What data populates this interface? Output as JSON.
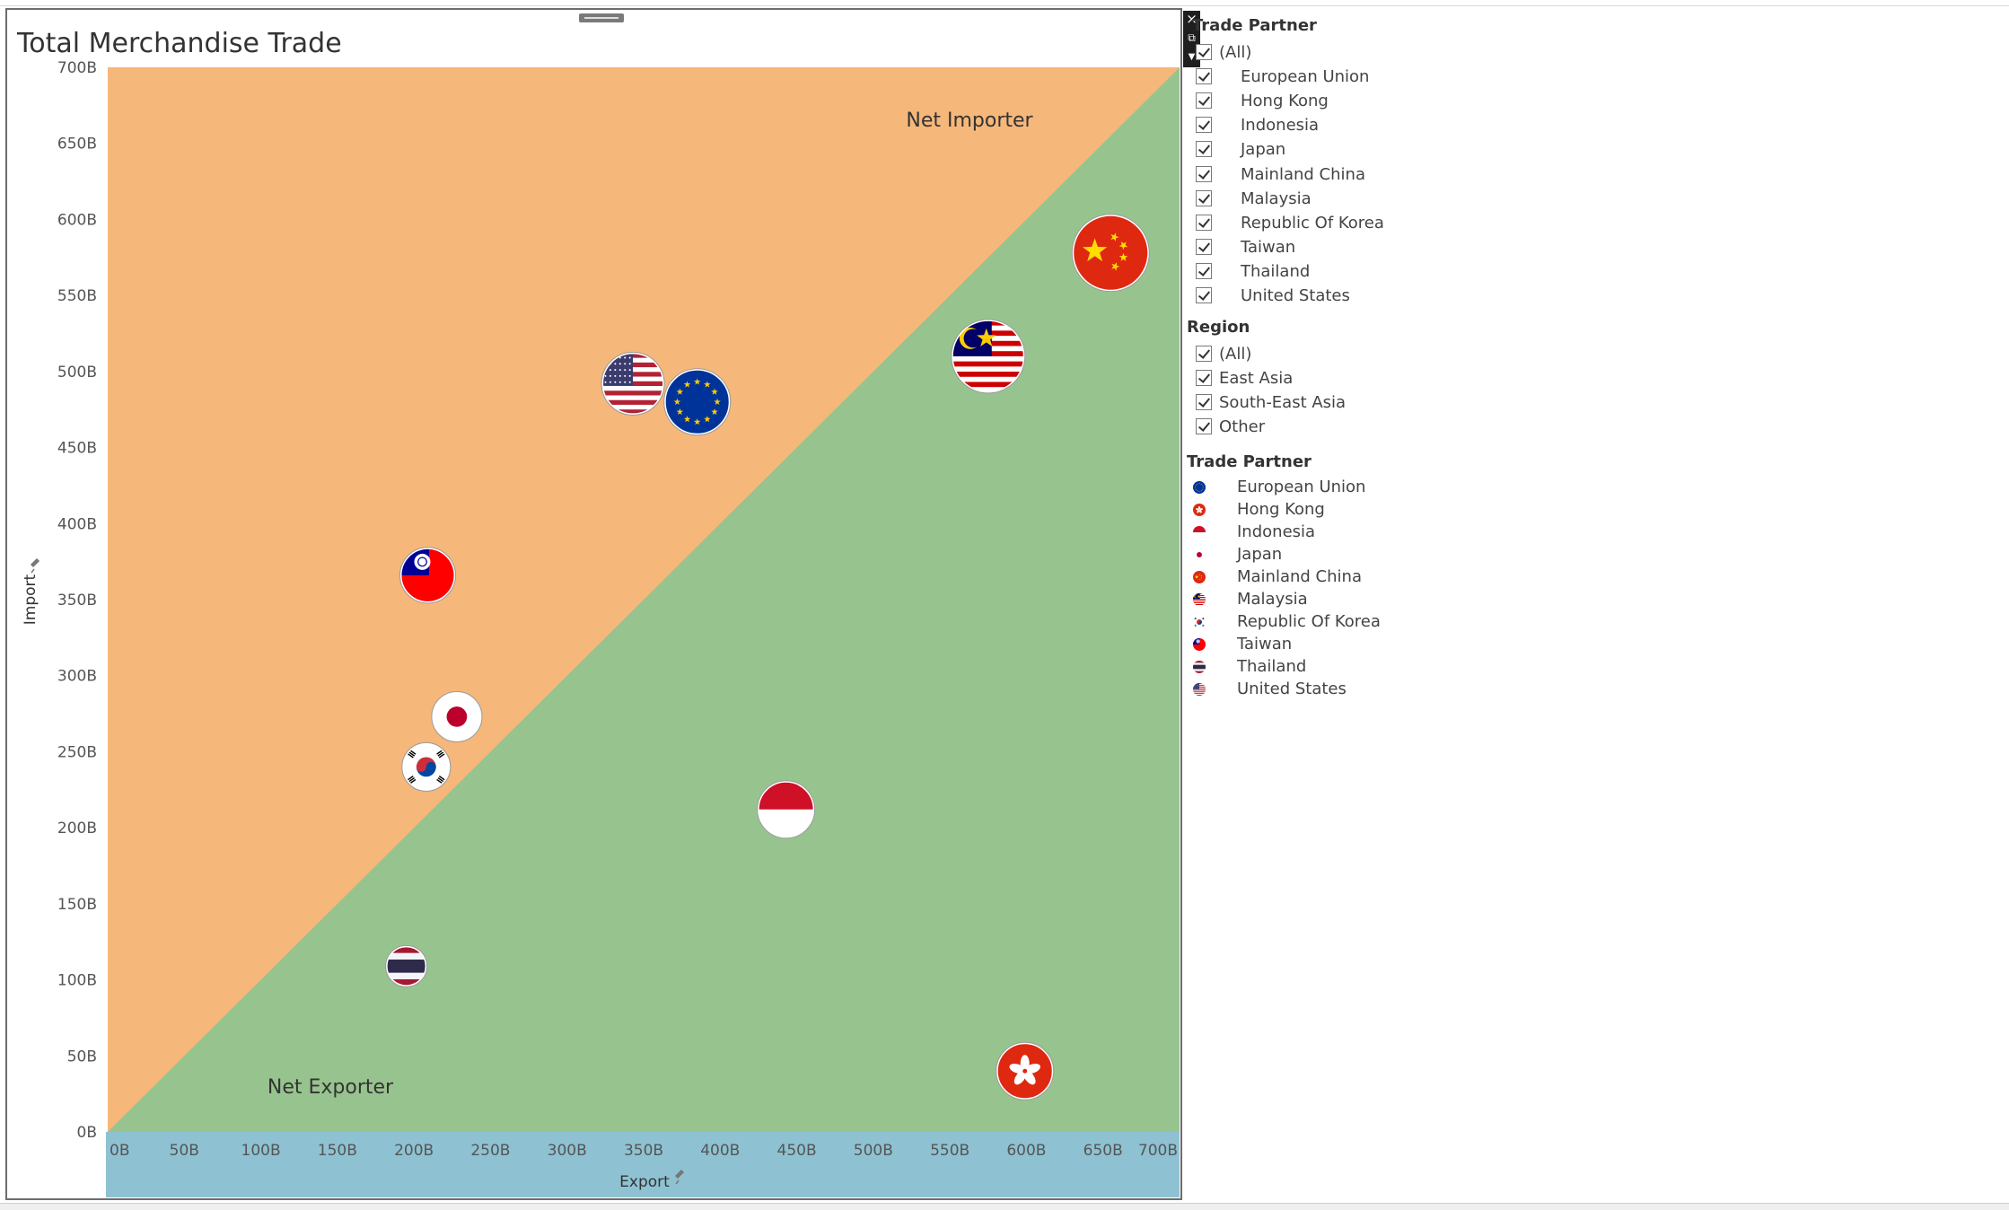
{
  "chart_data": {
    "type": "scatter",
    "title": "Total Merchandise Trade",
    "xlabel": "Export",
    "ylabel": "Import",
    "xlim": [
      0,
      700
    ],
    "ylim": [
      0,
      700
    ],
    "x_ticks": [
      "0B",
      "50B",
      "100B",
      "150B",
      "200B",
      "250B",
      "300B",
      "350B",
      "400B",
      "450B",
      "500B",
      "550B",
      "600B",
      "650B",
      "700B"
    ],
    "y_ticks": [
      "0B",
      "50B",
      "100B",
      "150B",
      "200B",
      "250B",
      "300B",
      "350B",
      "400B",
      "450B",
      "500B",
      "550B",
      "600B",
      "650B",
      "700B"
    ],
    "regions": [
      {
        "label": "Net Importer",
        "color": "#f6b77a"
      },
      {
        "label": "Net Exporter",
        "color": "#97c48e"
      }
    ],
    "points": [
      {
        "name": "Mainland China",
        "x": 655,
        "y": 578
      },
      {
        "name": "Malaysia",
        "x": 575,
        "y": 510
      },
      {
        "name": "United States",
        "x": 343,
        "y": 492
      },
      {
        "name": "European Union",
        "x": 385,
        "y": 480
      },
      {
        "name": "Taiwan",
        "x": 209,
        "y": 366
      },
      {
        "name": "Japan",
        "x": 228,
        "y": 273
      },
      {
        "name": "Republic Of Korea",
        "x": 208,
        "y": 240
      },
      {
        "name": "Indonesia",
        "x": 443,
        "y": 212
      },
      {
        "name": "Thailand",
        "x": 195,
        "y": 109
      },
      {
        "name": "Hong Kong",
        "x": 599,
        "y": 40
      }
    ],
    "legend_position": "right"
  },
  "filters": {
    "trade_partner": {
      "title": "Trade Partner",
      "items": [
        "(All)",
        "European Union",
        "Hong Kong",
        "Indonesia",
        "Japan",
        "Mainland China",
        "Malaysia",
        "Republic Of Korea",
        "Taiwan",
        "Thailand",
        "United States"
      ]
    },
    "region": {
      "title": "Region",
      "items": [
        "(All)",
        "East Asia",
        "South-East Asia",
        "Other"
      ]
    }
  },
  "legend": {
    "title": "Trade Partner",
    "items": [
      "European Union",
      "Hong Kong",
      "Indonesia",
      "Japan",
      "Mainland China",
      "Malaysia",
      "Republic Of Korea",
      "Taiwan",
      "Thailand",
      "United States"
    ]
  },
  "colors": {
    "importer_bg": "#f6b77a",
    "exporter_bg": "#97c48e",
    "axis_band": "#8ec2d2"
  }
}
